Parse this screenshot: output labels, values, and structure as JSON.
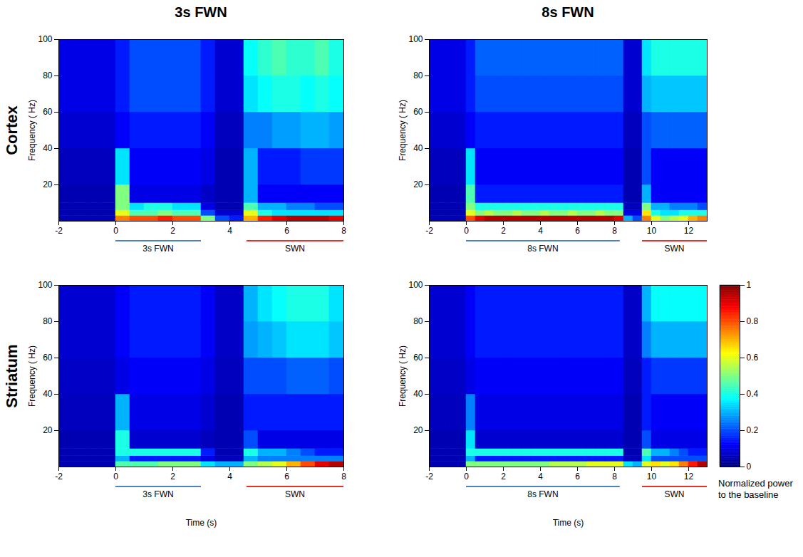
{
  "chart_data": [
    {
      "type": "heatmap",
      "title": "3s FWN",
      "row_label": "Cortex",
      "y_label": "Frequency ( Hz)",
      "xlim": [
        -2,
        8
      ],
      "xticks": [
        -2,
        0,
        2,
        4,
        6,
        8
      ],
      "ylim": [
        0,
        100
      ],
      "yticks": [
        20,
        40,
        60,
        80,
        100
      ],
      "x_edges": [
        -2,
        -1.5,
        -1,
        -0.5,
        0,
        0.5,
        1,
        1.5,
        2,
        2.5,
        3,
        3.5,
        4,
        4.5,
        5,
        5.5,
        6,
        6.5,
        7,
        7.5,
        8
      ],
      "y_edges": [
        0,
        3,
        6,
        10,
        20,
        40,
        60,
        80,
        100
      ],
      "cells": [
        [
          0.05,
          0.05,
          0.05,
          0.05,
          0.75,
          0.8,
          0.8,
          0.85,
          0.8,
          0.8,
          0.5,
          0.2,
          0.15,
          0.7,
          0.85,
          0.9,
          0.95,
          0.95,
          0.95,
          0.9
        ],
        [
          0.05,
          0.05,
          0.05,
          0.05,
          0.6,
          0.45,
          0.45,
          0.5,
          0.45,
          0.45,
          0.2,
          0.08,
          0.08,
          0.6,
          0.4,
          0.35,
          0.35,
          0.35,
          0.35,
          0.35
        ],
        [
          0.05,
          0.05,
          0.05,
          0.05,
          0.5,
          0.35,
          0.4,
          0.4,
          0.35,
          0.35,
          0.1,
          0.05,
          0.05,
          0.45,
          0.3,
          0.3,
          0.25,
          0.25,
          0.2,
          0.2
        ],
        [
          0.05,
          0.05,
          0.05,
          0.05,
          0.5,
          0.1,
          0.1,
          0.1,
          0.1,
          0.1,
          0.07,
          0.05,
          0.05,
          0.3,
          0.12,
          0.12,
          0.12,
          0.12,
          0.12,
          0.12
        ],
        [
          0.06,
          0.06,
          0.06,
          0.06,
          0.35,
          0.12,
          0.12,
          0.12,
          0.12,
          0.12,
          0.1,
          0.05,
          0.05,
          0.3,
          0.15,
          0.15,
          0.15,
          0.18,
          0.18,
          0.18
        ],
        [
          0.08,
          0.08,
          0.08,
          0.08,
          0.12,
          0.15,
          0.15,
          0.15,
          0.15,
          0.15,
          0.12,
          0.06,
          0.06,
          0.25,
          0.25,
          0.28,
          0.28,
          0.3,
          0.3,
          0.28
        ],
        [
          0.1,
          0.1,
          0.1,
          0.1,
          0.15,
          0.2,
          0.2,
          0.2,
          0.2,
          0.2,
          0.15,
          0.08,
          0.08,
          0.35,
          0.38,
          0.4,
          0.4,
          0.38,
          0.4,
          0.38
        ],
        [
          0.1,
          0.1,
          0.1,
          0.1,
          0.15,
          0.2,
          0.2,
          0.2,
          0.2,
          0.2,
          0.15,
          0.08,
          0.08,
          0.38,
          0.42,
          0.45,
          0.42,
          0.42,
          0.45,
          0.4
        ]
      ],
      "annotations": [
        {
          "label": "3s FWN",
          "start": 0,
          "end": 3,
          "color": "#4f81bd"
        },
        {
          "label": "SWN",
          "start": 4.6,
          "end": 8,
          "color": "#e8302a"
        }
      ]
    },
    {
      "type": "heatmap",
      "title": "8s FWN",
      "y_label": "Frequency ( Hz)",
      "xlim": [
        -2,
        13
      ],
      "xticks": [
        -2,
        0,
        2,
        4,
        6,
        8,
        10,
        12
      ],
      "ylim": [
        0,
        100
      ],
      "yticks": [
        20,
        40,
        60,
        80,
        100
      ],
      "x_edges": [
        -2,
        -1.5,
        -1,
        -0.5,
        0,
        0.5,
        1,
        1.5,
        2,
        2.5,
        3,
        3.5,
        4,
        4.5,
        5,
        5.5,
        6,
        6.5,
        7,
        7.5,
        8,
        8.5,
        9,
        9.5,
        10,
        10.5,
        11,
        11.5,
        12,
        12.5,
        13
      ],
      "y_edges": [
        0,
        3,
        6,
        10,
        20,
        40,
        60,
        80,
        100
      ],
      "cells": [
        [
          0.05,
          0.05,
          0.05,
          0.05,
          0.8,
          0.9,
          0.95,
          0.95,
          0.95,
          0.95,
          0.95,
          0.95,
          0.95,
          0.95,
          0.95,
          0.95,
          0.95,
          0.95,
          0.95,
          0.95,
          0.9,
          0.3,
          0.2,
          0.75,
          0.6,
          0.5,
          0.55,
          0.6,
          0.7,
          0.75
        ],
        [
          0.05,
          0.05,
          0.05,
          0.05,
          0.6,
          0.5,
          0.55,
          0.5,
          0.5,
          0.55,
          0.5,
          0.5,
          0.55,
          0.5,
          0.5,
          0.55,
          0.5,
          0.5,
          0.55,
          0.5,
          0.5,
          0.1,
          0.1,
          0.65,
          0.4,
          0.35,
          0.35,
          0.4,
          0.4,
          0.4
        ],
        [
          0.05,
          0.05,
          0.05,
          0.05,
          0.5,
          0.4,
          0.4,
          0.4,
          0.4,
          0.4,
          0.4,
          0.4,
          0.4,
          0.4,
          0.4,
          0.4,
          0.4,
          0.4,
          0.4,
          0.4,
          0.4,
          0.06,
          0.06,
          0.5,
          0.3,
          0.3,
          0.25,
          0.25,
          0.25,
          0.2
        ],
        [
          0.05,
          0.05,
          0.05,
          0.05,
          0.45,
          0.15,
          0.15,
          0.15,
          0.15,
          0.15,
          0.15,
          0.15,
          0.15,
          0.15,
          0.15,
          0.15,
          0.15,
          0.15,
          0.15,
          0.15,
          0.15,
          0.05,
          0.05,
          0.3,
          0.12,
          0.12,
          0.12,
          0.12,
          0.12,
          0.12
        ],
        [
          0.06,
          0.06,
          0.06,
          0.06,
          0.35,
          0.12,
          0.12,
          0.12,
          0.12,
          0.12,
          0.12,
          0.12,
          0.12,
          0.12,
          0.12,
          0.12,
          0.12,
          0.12,
          0.12,
          0.12,
          0.12,
          0.05,
          0.05,
          0.2,
          0.12,
          0.12,
          0.12,
          0.12,
          0.12,
          0.12
        ],
        [
          0.08,
          0.08,
          0.08,
          0.08,
          0.12,
          0.15,
          0.15,
          0.15,
          0.15,
          0.15,
          0.15,
          0.15,
          0.15,
          0.15,
          0.15,
          0.15,
          0.15,
          0.15,
          0.15,
          0.15,
          0.15,
          0.06,
          0.06,
          0.2,
          0.22,
          0.22,
          0.22,
          0.22,
          0.22,
          0.22
        ],
        [
          0.1,
          0.1,
          0.1,
          0.1,
          0.15,
          0.2,
          0.2,
          0.2,
          0.2,
          0.2,
          0.2,
          0.2,
          0.2,
          0.2,
          0.2,
          0.2,
          0.2,
          0.2,
          0.2,
          0.2,
          0.2,
          0.08,
          0.08,
          0.3,
          0.32,
          0.32,
          0.32,
          0.32,
          0.32,
          0.32
        ],
        [
          0.1,
          0.1,
          0.1,
          0.1,
          0.15,
          0.22,
          0.22,
          0.22,
          0.22,
          0.22,
          0.22,
          0.22,
          0.22,
          0.22,
          0.22,
          0.22,
          0.22,
          0.22,
          0.22,
          0.22,
          0.22,
          0.08,
          0.08,
          0.35,
          0.4,
          0.4,
          0.4,
          0.4,
          0.4,
          0.4
        ]
      ],
      "annotations": [
        {
          "label": "8s FWN",
          "start": 0,
          "end": 8.3,
          "color": "#4f81bd"
        },
        {
          "label": "SWN",
          "start": 9.5,
          "end": 13,
          "color": "#e8302a"
        }
      ]
    },
    {
      "type": "heatmap",
      "row_label": "Striatum",
      "y_label": "Frequency ( Hz)",
      "x_label": "Time (s)",
      "xlim": [
        -2,
        8
      ],
      "xticks": [
        -2,
        0,
        2,
        4,
        6,
        8
      ],
      "ylim": [
        0,
        100
      ],
      "yticks": [
        20,
        40,
        60,
        80,
        100
      ],
      "x_edges": [
        -2,
        -1.5,
        -1,
        -0.5,
        0,
        0.5,
        1,
        1.5,
        2,
        2.5,
        3,
        3.5,
        4,
        4.5,
        5,
        5.5,
        6,
        6.5,
        7,
        7.5,
        8
      ],
      "y_edges": [
        0,
        3,
        6,
        10,
        20,
        40,
        60,
        80,
        100
      ],
      "cells": [
        [
          0.05,
          0.05,
          0.05,
          0.05,
          0.45,
          0.45,
          0.45,
          0.5,
          0.5,
          0.5,
          0.35,
          0.3,
          0.3,
          0.5,
          0.55,
          0.6,
          0.7,
          0.8,
          0.9,
          0.95
        ],
        [
          0.05,
          0.05,
          0.05,
          0.05,
          0.3,
          0.15,
          0.15,
          0.15,
          0.15,
          0.15,
          0.1,
          0.06,
          0.06,
          0.3,
          0.25,
          0.25,
          0.25,
          0.25,
          0.25,
          0.25
        ],
        [
          0.05,
          0.05,
          0.05,
          0.05,
          0.4,
          0.4,
          0.4,
          0.4,
          0.4,
          0.4,
          0.15,
          0.05,
          0.05,
          0.4,
          0.3,
          0.3,
          0.25,
          0.2,
          0.15,
          0.15
        ],
        [
          0.05,
          0.05,
          0.05,
          0.05,
          0.4,
          0.08,
          0.08,
          0.08,
          0.08,
          0.08,
          0.06,
          0.05,
          0.05,
          0.2,
          0.1,
          0.1,
          0.1,
          0.1,
          0.1,
          0.1
        ],
        [
          0.06,
          0.06,
          0.06,
          0.06,
          0.3,
          0.1,
          0.1,
          0.1,
          0.1,
          0.1,
          0.08,
          0.05,
          0.05,
          0.15,
          0.15,
          0.15,
          0.15,
          0.15,
          0.15,
          0.15
        ],
        [
          0.07,
          0.07,
          0.07,
          0.07,
          0.1,
          0.12,
          0.12,
          0.12,
          0.12,
          0.12,
          0.1,
          0.06,
          0.06,
          0.2,
          0.2,
          0.2,
          0.22,
          0.22,
          0.22,
          0.2
        ],
        [
          0.08,
          0.08,
          0.08,
          0.08,
          0.12,
          0.15,
          0.15,
          0.15,
          0.15,
          0.15,
          0.12,
          0.07,
          0.07,
          0.28,
          0.3,
          0.32,
          0.35,
          0.35,
          0.35,
          0.32
        ],
        [
          0.08,
          0.08,
          0.08,
          0.08,
          0.12,
          0.15,
          0.15,
          0.15,
          0.15,
          0.15,
          0.12,
          0.07,
          0.07,
          0.3,
          0.35,
          0.38,
          0.4,
          0.4,
          0.4,
          0.35
        ]
      ],
      "annotations": [
        {
          "label": "3s FWN",
          "start": 0,
          "end": 3,
          "color": "#4f81bd"
        },
        {
          "label": "SWN",
          "start": 4.6,
          "end": 8,
          "color": "#e8302a"
        }
      ]
    },
    {
      "type": "heatmap",
      "y_label": "Frequency ( Hz)",
      "x_label": "Time (s)",
      "xlim": [
        -2,
        13
      ],
      "xticks": [
        -2,
        0,
        2,
        4,
        6,
        8,
        10,
        12
      ],
      "ylim": [
        0,
        100
      ],
      "yticks": [
        20,
        40,
        60,
        80,
        100
      ],
      "x_edges": [
        -2,
        -1.5,
        -1,
        -0.5,
        0,
        0.5,
        1,
        1.5,
        2,
        2.5,
        3,
        3.5,
        4,
        4.5,
        5,
        5.5,
        6,
        6.5,
        7,
        7.5,
        8,
        8.5,
        9,
        9.5,
        10,
        10.5,
        11,
        11.5,
        12,
        12.5,
        13
      ],
      "y_edges": [
        0,
        3,
        6,
        10,
        20,
        40,
        60,
        80,
        100
      ],
      "cells": [
        [
          0.05,
          0.05,
          0.05,
          0.05,
          0.5,
          0.5,
          0.5,
          0.5,
          0.5,
          0.5,
          0.5,
          0.5,
          0.5,
          0.55,
          0.55,
          0.55,
          0.55,
          0.6,
          0.6,
          0.6,
          0.6,
          0.35,
          0.3,
          0.6,
          0.65,
          0.6,
          0.65,
          0.75,
          0.85,
          0.95
        ],
        [
          0.05,
          0.05,
          0.05,
          0.05,
          0.3,
          0.15,
          0.15,
          0.15,
          0.15,
          0.15,
          0.15,
          0.15,
          0.15,
          0.15,
          0.15,
          0.15,
          0.15,
          0.15,
          0.15,
          0.15,
          0.15,
          0.06,
          0.06,
          0.35,
          0.2,
          0.2,
          0.2,
          0.2,
          0.2,
          0.2
        ],
        [
          0.05,
          0.05,
          0.05,
          0.05,
          0.4,
          0.4,
          0.4,
          0.4,
          0.4,
          0.4,
          0.4,
          0.4,
          0.4,
          0.4,
          0.4,
          0.4,
          0.4,
          0.4,
          0.4,
          0.4,
          0.4,
          0.05,
          0.05,
          0.45,
          0.3,
          0.3,
          0.25,
          0.2,
          0.15,
          0.15
        ],
        [
          0.05,
          0.05,
          0.05,
          0.05,
          0.35,
          0.08,
          0.08,
          0.08,
          0.08,
          0.08,
          0.08,
          0.08,
          0.08,
          0.08,
          0.08,
          0.08,
          0.08,
          0.08,
          0.08,
          0.08,
          0.08,
          0.05,
          0.05,
          0.2,
          0.1,
          0.1,
          0.1,
          0.1,
          0.1,
          0.1
        ],
        [
          0.06,
          0.06,
          0.06,
          0.06,
          0.25,
          0.1,
          0.1,
          0.1,
          0.1,
          0.1,
          0.1,
          0.1,
          0.1,
          0.1,
          0.1,
          0.1,
          0.1,
          0.1,
          0.1,
          0.1,
          0.1,
          0.05,
          0.05,
          0.15,
          0.12,
          0.12,
          0.12,
          0.12,
          0.12,
          0.12
        ],
        [
          0.07,
          0.07,
          0.07,
          0.07,
          0.1,
          0.12,
          0.12,
          0.12,
          0.12,
          0.12,
          0.12,
          0.12,
          0.12,
          0.12,
          0.12,
          0.12,
          0.12,
          0.12,
          0.12,
          0.12,
          0.12,
          0.06,
          0.06,
          0.15,
          0.18,
          0.18,
          0.18,
          0.18,
          0.18,
          0.18
        ],
        [
          0.08,
          0.08,
          0.08,
          0.08,
          0.12,
          0.15,
          0.15,
          0.15,
          0.15,
          0.15,
          0.15,
          0.15,
          0.15,
          0.15,
          0.15,
          0.15,
          0.15,
          0.15,
          0.15,
          0.15,
          0.15,
          0.07,
          0.07,
          0.25,
          0.3,
          0.3,
          0.3,
          0.3,
          0.3,
          0.3
        ],
        [
          0.08,
          0.08,
          0.08,
          0.08,
          0.12,
          0.15,
          0.15,
          0.15,
          0.15,
          0.15,
          0.15,
          0.15,
          0.15,
          0.15,
          0.15,
          0.15,
          0.15,
          0.15,
          0.15,
          0.15,
          0.15,
          0.07,
          0.07,
          0.3,
          0.38,
          0.38,
          0.38,
          0.38,
          0.38,
          0.38
        ]
      ],
      "annotations": [
        {
          "label": "8s FWN",
          "start": 0,
          "end": 8.3,
          "color": "#4f81bd"
        },
        {
          "label": "SWN",
          "start": 9.5,
          "end": 13,
          "color": "#e8302a"
        }
      ]
    }
  ],
  "colorbar": {
    "range": [
      0,
      1
    ],
    "ticks": [
      0,
      0.2,
      0.4,
      0.6,
      0.8,
      1
    ],
    "label": "Normalized power to the baseline"
  }
}
